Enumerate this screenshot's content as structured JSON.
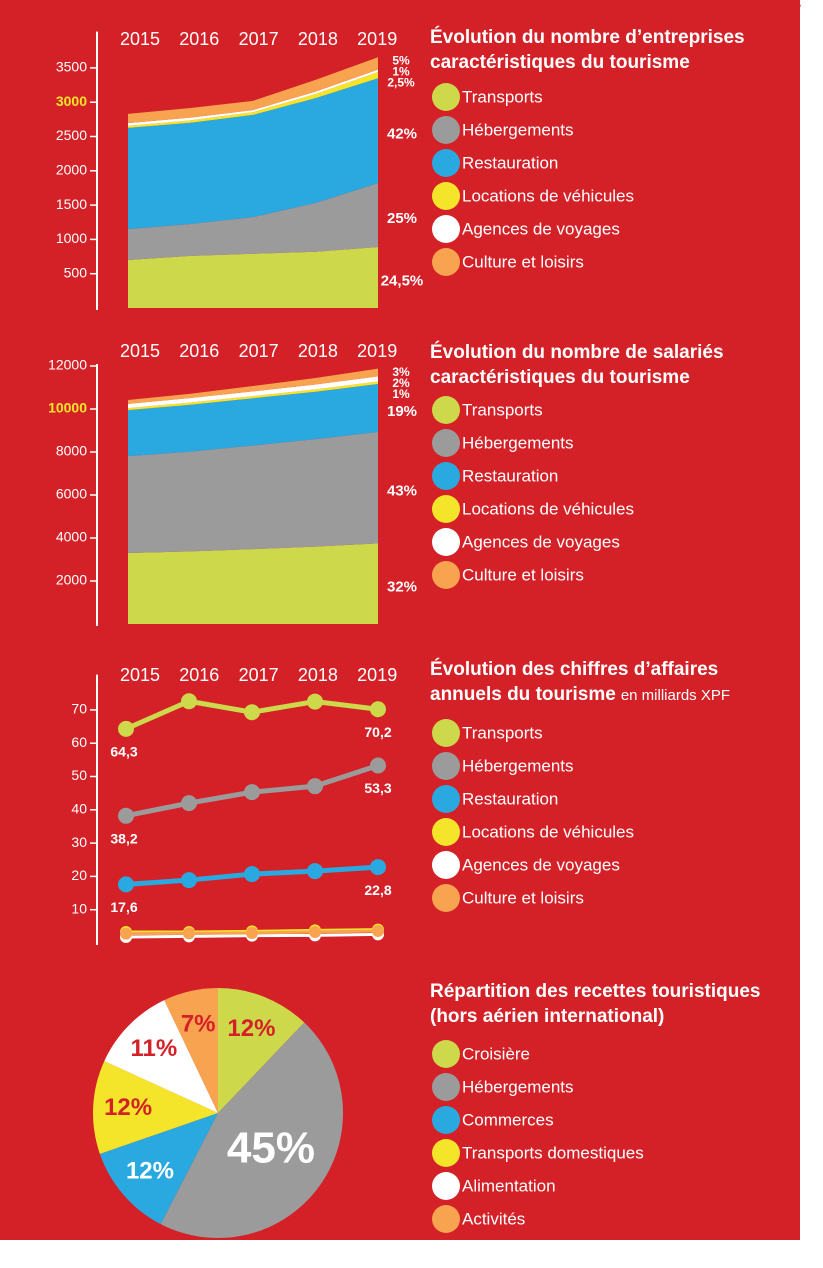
{
  "chart_data": [
    {
      "type": "stacked_area",
      "title": [
        "Évolution du nombre d’entreprises",
        "caractéristiques du tourisme"
      ],
      "categories": [
        "2015",
        "2016",
        "2017",
        "2018",
        "2019"
      ],
      "ylim": [
        0,
        4000
      ],
      "yticks": [
        500,
        1000,
        1500,
        2000,
        2500,
        3000,
        3500
      ],
      "ytick_highlight": 3000,
      "ytick_highlight_color": "#f5e52a",
      "series": [
        {
          "name": "Transports",
          "color": "#cdd84a",
          "values": [
            700,
            760,
            790,
            820,
            890
          ],
          "share": "24,5%"
        },
        {
          "name": "Hébergements",
          "color": "#9b9b9b",
          "values": [
            450,
            465,
            535,
            710,
            930
          ],
          "share": "25%"
        },
        {
          "name": "Restauration",
          "color": "#29a9e0",
          "values": [
            1475,
            1475,
            1490,
            1530,
            1530
          ],
          "share": "42%"
        },
        {
          "name": "Locations de véhicules",
          "color": "#f5e52a",
          "values": [
            30,
            35,
            40,
            60,
            90
          ],
          "share": "2,5%"
        },
        {
          "name": "Agences de voyages",
          "color": "#ffffff",
          "values": [
            40,
            40,
            30,
            35,
            35
          ],
          "share": "1%"
        },
        {
          "name": "Culture et loisirs",
          "color": "#f7a350",
          "values": [
            135,
            140,
            135,
            170,
            180
          ],
          "share": "5%"
        }
      ]
    },
    {
      "type": "stacked_area",
      "title": [
        "Évolution du nombre de salariés",
        "caractéristiques du tourisme"
      ],
      "categories": [
        "2015",
        "2016",
        "2017",
        "2018",
        "2019"
      ],
      "ylim": [
        0,
        12000
      ],
      "yticks": [
        2000,
        4000,
        6000,
        8000,
        10000,
        12000
      ],
      "ytick_highlight": 10000,
      "ytick_highlight_color": "#f5e52a",
      "series": [
        {
          "name": "Transports",
          "color": "#cdd84a",
          "values": [
            3300,
            3380,
            3480,
            3600,
            3750
          ],
          "share": "32%"
        },
        {
          "name": "Hébergements",
          "color": "#9b9b9b",
          "values": [
            4510,
            4640,
            4820,
            5000,
            5180
          ],
          "share": "43%"
        },
        {
          "name": "Restauration",
          "color": "#29a9e0",
          "values": [
            2140,
            2180,
            2200,
            2200,
            2230
          ],
          "share": "19%"
        },
        {
          "name": "Locations de véhicules",
          "color": "#f5e52a",
          "values": [
            90,
            100,
            100,
            110,
            120
          ],
          "share": "1%"
        },
        {
          "name": "Agences de voyages",
          "color": "#ffffff",
          "values": [
            200,
            210,
            220,
            230,
            240
          ],
          "share": "2%"
        },
        {
          "name": "Culture et loisirs",
          "color": "#f7a350",
          "values": [
            180,
            200,
            250,
            300,
            360
          ],
          "share": "3%"
        }
      ]
    },
    {
      "type": "line",
      "title": [
        "Évolution des chiffres d’affaires",
        "annuels du tourisme"
      ],
      "unit": "en milliards XPF",
      "categories": [
        "2015",
        "2016",
        "2017",
        "2018",
        "2019"
      ],
      "ylim": [
        0,
        80
      ],
      "yticks": [
        10,
        20,
        30,
        40,
        50,
        60,
        70
      ],
      "series": [
        {
          "name": "Transports",
          "color": "#cdd84a",
          "values": [
            64.3,
            72.6,
            69.3,
            72.5,
            70.2
          ],
          "value_labels": [
            "64,3",
            null,
            null,
            null,
            "70,2"
          ]
        },
        {
          "name": "Hébergements",
          "color": "#9b9b9b",
          "values": [
            38.2,
            42,
            45.3,
            47.1,
            53.3
          ],
          "value_labels": [
            "38,2",
            null,
            null,
            null,
            "53,3"
          ]
        },
        {
          "name": "Restauration",
          "color": "#29a9e0",
          "values": [
            17.6,
            18.9,
            20.7,
            21.6,
            22.8
          ],
          "value_labels": [
            "17,6",
            null,
            null,
            null,
            "22,8"
          ]
        },
        {
          "name": "Locations de véhicules",
          "color": "#f5e52a",
          "values": [
            3.3,
            3.3,
            3.5,
            3.8,
            4.0
          ]
        },
        {
          "name": "Agences de voyages",
          "color": "#ffffff",
          "values": [
            1.8,
            2.0,
            2.2,
            2.3,
            2.6
          ]
        },
        {
          "name": "Culture et loisirs",
          "color": "#f7a350",
          "values": [
            2.8,
            2.9,
            3.0,
            3.3,
            3.6
          ]
        }
      ]
    },
    {
      "type": "pie",
      "title": [
        "Répartition des recettes touristiques",
        "(hors aérien international)"
      ],
      "categories": [
        "Croisière",
        "Hébergements",
        "Commerces",
        "Transports domestiques",
        "Alimentation",
        "Activités"
      ],
      "values": [
        12,
        45,
        12,
        12,
        11,
        7
      ],
      "value_labels": [
        "12%",
        "45%",
        "12%",
        "12%",
        "11%",
        "7%"
      ],
      "colors": [
        "#cdd84a",
        "#9b9b9b",
        "#29a9e0",
        "#f5e52a",
        "#ffffff",
        "#f7a350"
      ],
      "label_colors": [
        "#d42128",
        "#ffffff",
        "#ffffff",
        "#d42128",
        "#d42128",
        "#d42128"
      ]
    }
  ]
}
